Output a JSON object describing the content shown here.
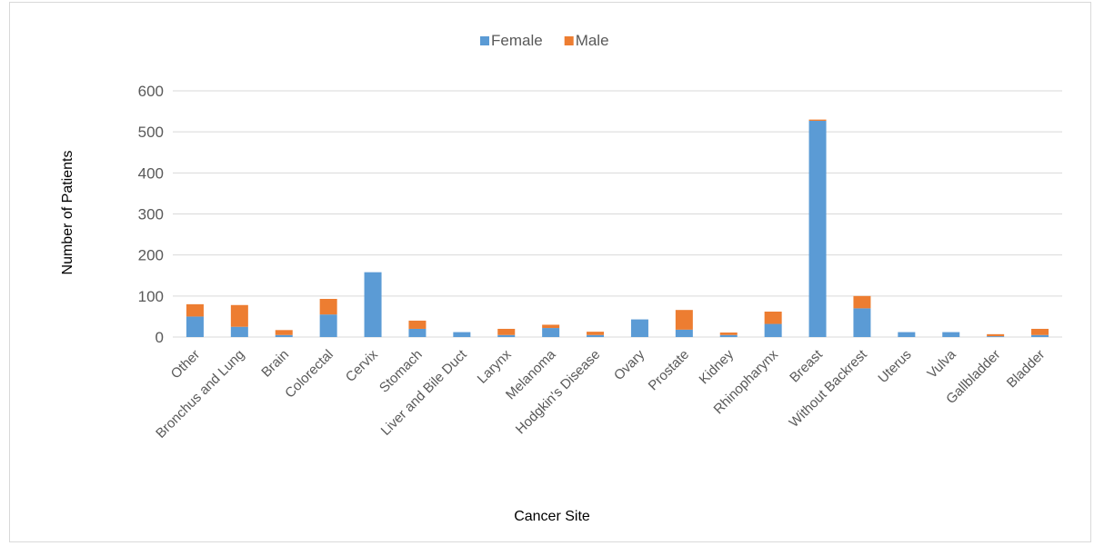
{
  "chart_data": {
    "type": "bar",
    "stacked": true,
    "title": "",
    "xlabel": "Cancer Site",
    "ylabel": "Number of Patients",
    "ylim": [
      0,
      600
    ],
    "yticks": [
      "0",
      "100",
      "200",
      "300",
      "400",
      "500",
      "600"
    ],
    "grid": true,
    "legend_position": "top-center",
    "categories": [
      "Other",
      "Bronchus and Lung",
      "Brain",
      "Colorectal",
      "Cervix",
      "Stomach",
      "Liver and Bile Duct",
      "Larynx",
      "Melanoma",
      "Hodgkin's Disease",
      "Ovary",
      "Prostate",
      "Kidney",
      "Rhinopharynx",
      "Breast",
      "Without Backrest",
      "Uterus",
      "Vulva",
      "Gallbladder",
      "Bladder"
    ],
    "series": [
      {
        "name": "Female",
        "color": "#5B9BD5",
        "values": [
          50,
          25,
          5,
          55,
          158,
          20,
          12,
          5,
          22,
          5,
          43,
          18,
          5,
          32,
          527,
          70,
          12,
          12,
          2,
          5
        ]
      },
      {
        "name": "Male",
        "color": "#ED7D31",
        "values": [
          30,
          53,
          12,
          38,
          0,
          20,
          0,
          15,
          8,
          8,
          0,
          48,
          6,
          30,
          3,
          30,
          0,
          0,
          5,
          15
        ]
      }
    ]
  }
}
